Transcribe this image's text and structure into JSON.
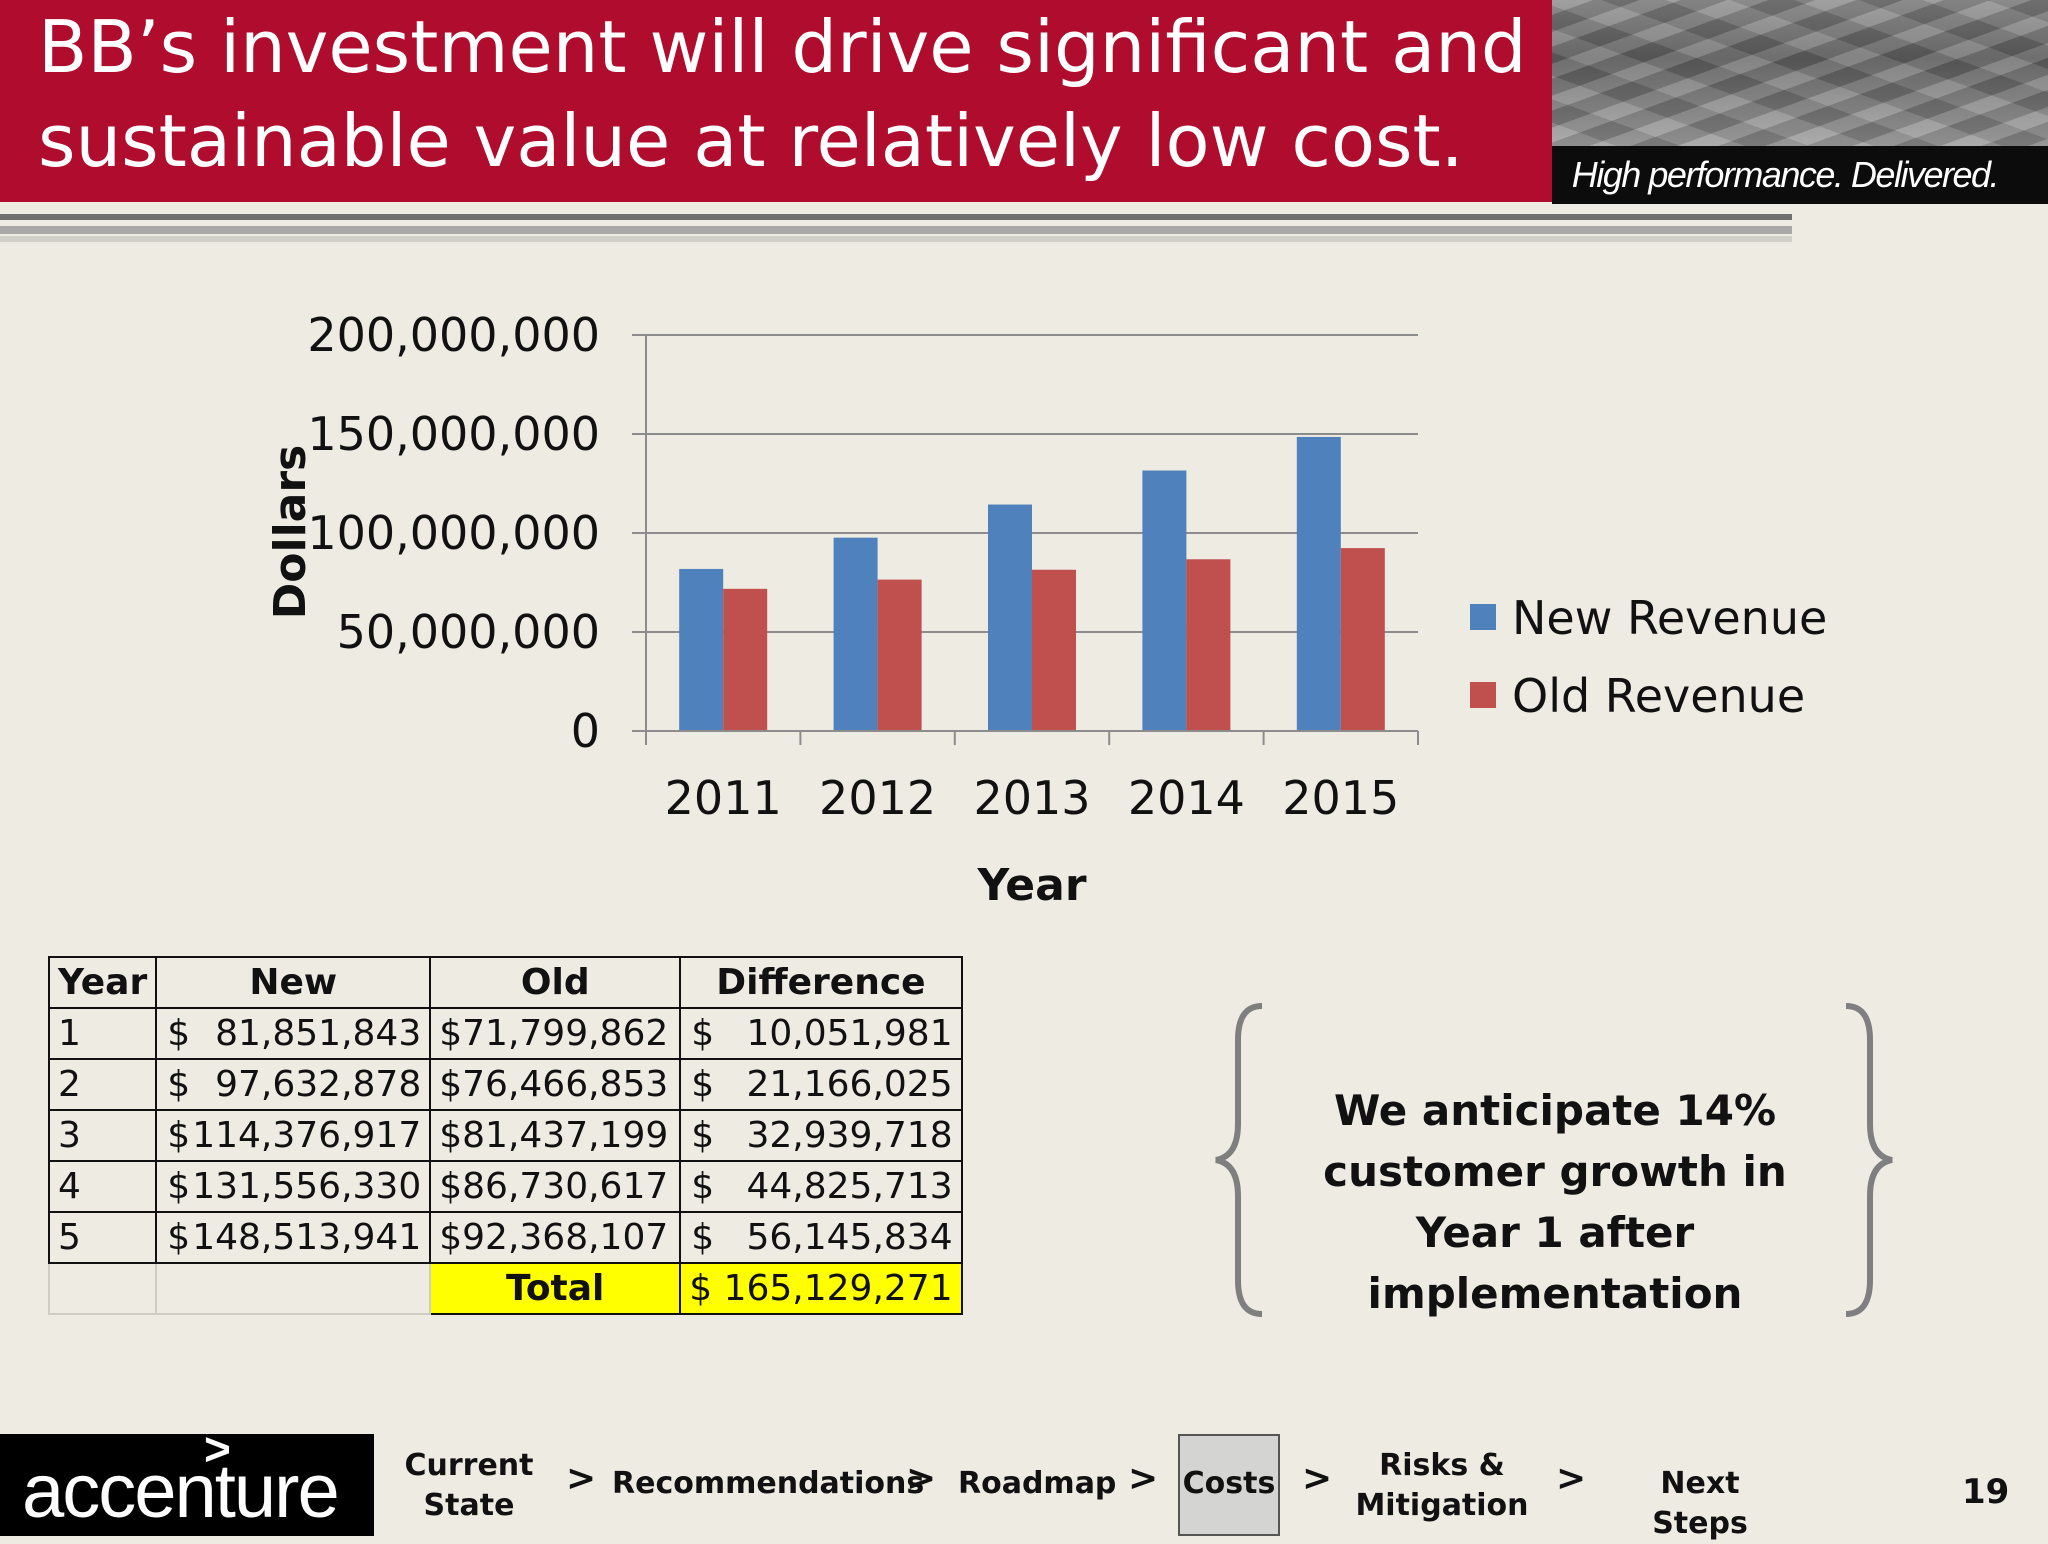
{
  "header": {
    "title": "BB’s investment will drive significant and sustainable value at relatively low cost.",
    "tagline": "High performance. Delivered."
  },
  "colors": {
    "brand_red": "#b00d2e",
    "new_revenue": "#4f81bd",
    "old_revenue": "#c0504d",
    "highlight": "#ffff00",
    "background": "#eeebe2"
  },
  "chart_data": {
    "type": "bar",
    "categories": [
      "2011",
      "2012",
      "2013",
      "2014",
      "2015"
    ],
    "series": [
      {
        "name": "New Revenue",
        "values": [
          81851843,
          97632878,
          114376917,
          131556330,
          148513941
        ]
      },
      {
        "name": "Old Revenue",
        "values": [
          71799862,
          76466853,
          81437199,
          86730617,
          92368107
        ]
      }
    ],
    "xlabel": "Year",
    "ylabel": "Dollars",
    "ylim": [
      0,
      200000000
    ],
    "yticks": [
      "0",
      "50,000,000",
      "100,000,000",
      "150,000,000",
      "200,000,000"
    ],
    "grid": true,
    "legend_position": "right"
  },
  "table": {
    "headers": [
      "Year",
      "New",
      "Old",
      "Difference"
    ],
    "rows": [
      {
        "year": "1",
        "new": "81,851,843",
        "old": "$71,799,862",
        "diff": "10,051,981"
      },
      {
        "year": "2",
        "new": "97,632,878",
        "old": "$76,466,853",
        "diff": "21,166,025"
      },
      {
        "year": "3",
        "new": "114,376,917",
        "old": "$81,437,199",
        "diff": "32,939,718"
      },
      {
        "year": "4",
        "new": "131,556,330",
        "old": "$86,730,617",
        "diff": "44,825,713"
      },
      {
        "year": "5",
        "new": "148,513,941",
        "old": "$92,368,107",
        "diff": "56,145,834"
      }
    ],
    "currency_symbol": "$",
    "total_label": "Total",
    "total_value": "$ 165,129,271"
  },
  "callout": {
    "text": "We anticipate 14% customer growth in Year 1 after implementation"
  },
  "footer": {
    "logo_text": "accenture",
    "logo_mark": ">",
    "nav": [
      {
        "label": "Current State"
      },
      {
        "label": "Recommendations"
      },
      {
        "label": "Roadmap"
      },
      {
        "label": "Costs",
        "active": true
      },
      {
        "label": "Risks & Mitigation"
      },
      {
        "label": "Next Steps"
      }
    ],
    "separator": ">",
    "page_number": "19"
  }
}
